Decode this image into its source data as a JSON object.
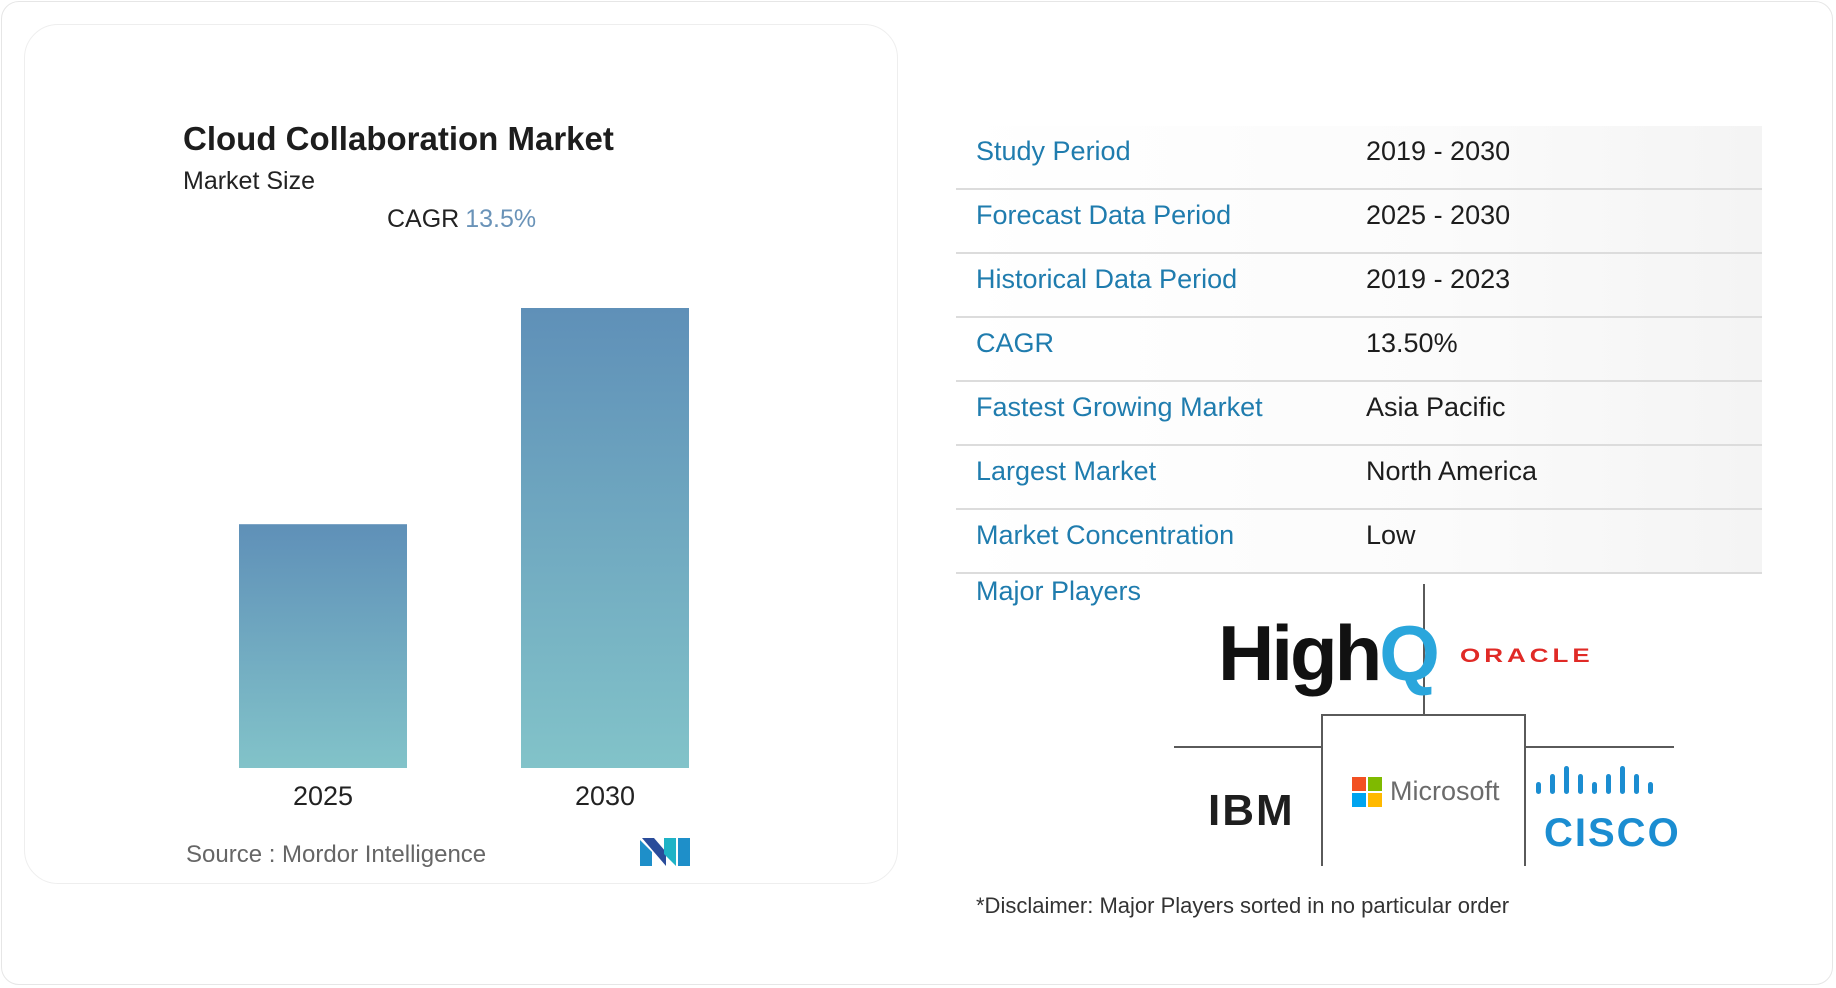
{
  "title": "Cloud Collaboration Market",
  "subtitle": "Market Size",
  "cagr": {
    "label": "CAGR",
    "value": "13.5%"
  },
  "source": "Source :  Mordor Intelligence",
  "brand_logo": "MI",
  "colors": {
    "bar_top": "#5f90b8",
    "bar_bottom": "#82c3c9",
    "key_text": "#1f7cae",
    "cagr_value": "#6a93b8"
  },
  "chart_data": {
    "type": "bar",
    "categories": [
      "2025",
      "2030"
    ],
    "values": [
      0.53,
      1.0
    ],
    "title": "Cloud Collaboration Market",
    "subtitle": "Market Size",
    "xlabel": "",
    "ylabel": "",
    "grid": false,
    "legend": "none"
  },
  "info": [
    {
      "key": "Study Period",
      "value": "2019 - 2030"
    },
    {
      "key": "Forecast Data Period",
      "value": "2025 - 2030"
    },
    {
      "key": "Historical Data Period",
      "value": "2019 - 2023"
    },
    {
      "key": "CAGR",
      "value": "13.50%"
    },
    {
      "key": "Fastest Growing Market",
      "value": "Asia Pacific"
    },
    {
      "key": "Largest Market",
      "value": "North America"
    },
    {
      "key": "Market Concentration",
      "value": "Low"
    }
  ],
  "major_players_label": "Major Players",
  "players": {
    "highq": "HighQ",
    "oracle": "ORACLE",
    "ibm": "IBM",
    "microsoft": "Microsoft",
    "cisco": "CISCO"
  },
  "disclaimer": "*Disclaimer: Major Players sorted in no particular order"
}
